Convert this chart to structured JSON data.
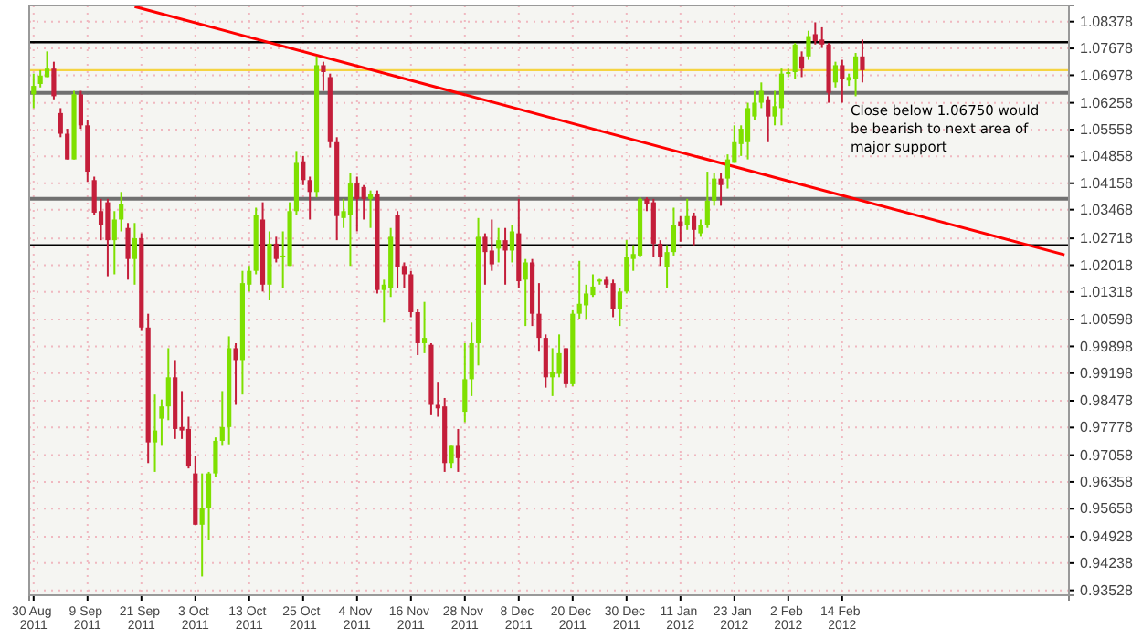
{
  "chart_data": {
    "type": "candlestick",
    "grid": true,
    "categories": [
      "30 Aug 2011",
      null,
      null,
      null,
      null,
      null,
      null,
      null,
      "9 Sep 2011",
      null,
      null,
      null,
      null,
      null,
      null,
      null,
      "21 Sep 2011",
      null,
      null,
      null,
      null,
      null,
      null,
      null,
      "3 Oct 2011",
      null,
      null,
      null,
      null,
      null,
      null,
      null,
      "13 Oct 2011",
      null,
      null,
      null,
      null,
      null,
      null,
      null,
      "25 Oct 2011",
      null,
      null,
      null,
      null,
      null,
      null,
      null,
      "4 Nov 2011",
      null,
      null,
      null,
      null,
      null,
      null,
      null,
      "16 Nov 2011",
      null,
      null,
      null,
      null,
      null,
      null,
      null,
      "28 Nov 2011",
      null,
      null,
      null,
      null,
      null,
      null,
      null,
      "8 Dec 2011",
      null,
      null,
      null,
      null,
      null,
      null,
      null,
      "20 Dec 2011",
      null,
      null,
      null,
      null,
      null,
      null,
      null,
      "30 Dec 2011",
      null,
      null,
      null,
      null,
      null,
      null,
      null,
      "11 Jan 2012",
      null,
      null,
      null,
      null,
      null,
      null,
      null,
      "23 Jan 2012",
      null,
      null,
      null,
      null,
      null,
      null,
      null,
      "2 Feb 2012",
      null,
      null,
      null,
      null,
      null,
      null,
      null,
      "14 Feb 2012",
      null,
      null,
      null,
      null,
      null,
      null,
      null,
      null,
      null,
      null,
      null,
      null,
      null,
      null,
      null,
      null,
      null,
      null,
      null,
      null,
      null,
      null,
      null,
      null,
      null,
      null,
      null,
      null,
      null,
      null,
      null,
      null,
      null
    ],
    "ohlc": [
      [
        1.0648,
        1.0702,
        1.0612,
        1.067
      ],
      [
        1.0675,
        1.0711,
        1.0666,
        1.0697
      ],
      [
        1.0693,
        1.076,
        1.0693,
        1.0715
      ],
      [
        1.0715,
        1.0733,
        1.0635,
        1.0643
      ],
      [
        1.0599,
        1.0612,
        1.0536,
        1.0545
      ],
      [
        1.0545,
        1.0558,
        1.0478,
        1.0478
      ],
      [
        1.0478,
        1.0657,
        1.0478,
        1.0648
      ],
      [
        1.0648,
        1.0657,
        1.0558,
        1.0567
      ],
      [
        1.0567,
        1.0581,
        1.042,
        1.0446
      ],
      [
        1.0424,
        1.0433,
        1.0334,
        1.0339
      ],
      [
        1.0343,
        1.0375,
        1.0267,
        1.0307
      ],
      [
        1.0366,
        1.0375,
        1.0173,
        1.0267
      ],
      [
        1.0267,
        1.0343,
        1.0178,
        1.0321
      ],
      [
        1.0321,
        1.0393,
        1.029,
        1.0361
      ],
      [
        1.0299,
        1.0312,
        1.0164,
        1.0218
      ],
      [
        1.0218,
        1.0312,
        1.0151,
        1.0272
      ],
      [
        1.0272,
        1.0285,
        1.003,
        1.0039
      ],
      [
        1.0039,
        1.0075,
        0.9685,
        0.9739
      ],
      [
        0.9739,
        0.9864,
        0.9662,
        0.977
      ],
      [
        0.9801,
        0.9851,
        0.973,
        0.9833
      ],
      [
        0.9833,
        0.9985,
        0.9797,
        0.9909
      ],
      [
        0.9909,
        0.9954,
        0.9748,
        0.9774
      ],
      [
        0.9779,
        0.9873,
        0.9748,
        0.977
      ],
      [
        0.9774,
        0.9806,
        0.9671,
        0.9676
      ],
      [
        0.9658,
        0.9703,
        0.9524,
        0.9524
      ],
      [
        0.9524,
        0.9658,
        0.9389,
        0.9568
      ],
      [
        0.9568,
        0.9662,
        0.9483,
        0.9658
      ],
      [
        0.9658,
        0.9752,
        0.9649,
        0.9743
      ],
      [
        0.9743,
        0.9873,
        0.973,
        0.9779
      ],
      [
        0.9779,
        1.0016,
        0.9734,
        0.9985
      ],
      [
        0.9985,
        0.9998,
        0.9837,
        0.9954
      ],
      [
        0.9954,
        1.0187,
        0.9864,
        1.0155
      ],
      [
        1.0151,
        1.02,
        1.0133,
        1.0187
      ],
      [
        1.0187,
        1.0352,
        1.0178,
        1.0334
      ],
      [
        1.0321,
        1.0366,
        1.0133,
        1.0151
      ],
      [
        1.0151,
        1.029,
        1.011,
        1.0258
      ],
      [
        1.0258,
        1.0276,
        1.0209,
        1.0218
      ],
      [
        1.0222,
        1.029,
        1.0142,
        1.0227
      ],
      [
        1.02,
        1.0366,
        1.02,
        1.0343
      ],
      [
        1.0343,
        1.05,
        1.0334,
        1.0469
      ],
      [
        1.0473,
        1.0487,
        1.0411,
        1.0424
      ],
      [
        1.0424,
        1.0433,
        1.0321,
        1.0393
      ],
      [
        1.0393,
        1.0747,
        1.0379,
        1.0724
      ],
      [
        1.0724,
        1.0733,
        1.0657,
        1.0706
      ],
      [
        1.0693,
        1.0702,
        1.0509,
        1.0523
      ],
      [
        1.0523,
        1.0536,
        1.0267,
        1.033
      ],
      [
        1.0325,
        1.0375,
        1.0299,
        1.0343
      ],
      [
        1.0334,
        1.0442,
        1.02,
        1.0415
      ],
      [
        1.0415,
        1.0433,
        1.029,
        1.0375
      ],
      [
        1.0406,
        1.0411,
        1.0321,
        1.0375
      ],
      [
        1.0375,
        1.0397,
        1.0299,
        1.0388
      ],
      [
        1.0388,
        1.0397,
        1.0128,
        1.0137
      ],
      [
        1.0137,
        1.0164,
        1.0052,
        1.0151
      ],
      [
        1.0142,
        1.0299,
        1.0119,
        1.0276
      ],
      [
        1.0334,
        1.0343,
        1.0142,
        1.0196
      ],
      [
        1.02,
        1.0209,
        1.0142,
        1.0178
      ],
      [
        1.0178,
        1.0187,
        1.0066,
        1.0079
      ],
      [
        1.0079,
        1.0088,
        0.9967,
        0.9998
      ],
      [
        0.9998,
        1.0106,
        0.9972,
        1.0012
      ],
      [
        0.9994,
        0.9998,
        0.981,
        0.9837
      ],
      [
        0.9837,
        0.9895,
        0.9806,
        0.9828
      ],
      [
        0.9833,
        0.9855,
        0.9662,
        0.9685
      ],
      [
        0.9685,
        0.973,
        0.9671,
        0.973
      ],
      [
        0.973,
        0.9774,
        0.9662,
        0.9698
      ],
      [
        0.9819,
        0.9998,
        0.9792,
        0.9904
      ],
      [
        0.9904,
        1.0052,
        0.986,
        0.9998
      ],
      [
        0.9998,
        1.0325,
        0.994,
        1.0276
      ],
      [
        1.0276,
        1.0285,
        1.0151,
        1.0236
      ],
      [
        1.024,
        1.0321,
        1.0187,
        1.0204
      ],
      [
        1.0245,
        1.0299,
        1.0209,
        1.0267
      ],
      [
        1.0267,
        1.0299,
        1.0151,
        1.024
      ],
      [
        1.024,
        1.0307,
        1.0209,
        1.029
      ],
      [
        1.0285,
        1.0375,
        1.0142,
        1.016
      ],
      [
        1.0164,
        1.0218,
        1.0043,
        1.0209
      ],
      [
        1.0209,
        1.0218,
        1.0043,
        1.0075
      ],
      [
        1.0075,
        1.0155,
        0.9976,
        1.0012
      ],
      [
        1.0012,
        1.0021,
        0.9882,
        0.9909
      ],
      [
        0.9909,
        0.9985,
        0.986,
        0.9922
      ],
      [
        0.9918,
        1.0021,
        0.9909,
        0.9972
      ],
      [
        0.9985,
        0.9985,
        0.9882,
        0.9891
      ],
      [
        0.9891,
        1.0084,
        0.9886,
        1.0075
      ],
      [
        1.0075,
        1.0213,
        1.0061,
        1.0101
      ],
      [
        1.0097,
        1.0151,
        1.0061,
        1.0128
      ],
      [
        1.0124,
        1.0178,
        1.0119,
        1.0146
      ],
      [
        1.016,
        1.0166,
        1.0151,
        1.0164
      ],
      [
        1.0164,
        1.0173,
        1.0142,
        1.0151
      ],
      [
        1.0155,
        1.0164,
        1.0066,
        1.0088
      ],
      [
        1.0088,
        1.0142,
        1.0043,
        1.0133
      ],
      [
        1.0133,
        1.0267,
        1.0128,
        1.0222
      ],
      [
        1.0218,
        1.0254,
        1.0187,
        1.0231
      ],
      [
        1.0227,
        1.0379,
        1.0222,
        1.0375
      ],
      [
        1.0375,
        1.0379,
        1.0343,
        1.0361
      ],
      [
        1.0366,
        1.0375,
        1.0222,
        1.0258
      ],
      [
        1.0258,
        1.0267,
        1.02,
        1.0222
      ],
      [
        1.0196,
        1.0254,
        1.0142,
        1.0236
      ],
      [
        1.0236,
        1.0352,
        1.0227,
        1.0307
      ],
      [
        1.0316,
        1.033,
        1.0263,
        1.0303
      ],
      [
        1.0307,
        1.0375,
        1.0294,
        1.033
      ],
      [
        1.033,
        1.0339,
        1.0254,
        1.0294
      ],
      [
        1.0285,
        1.0321,
        1.0276,
        1.0307
      ],
      [
        1.0307,
        1.0446,
        1.0299,
        1.037
      ],
      [
        1.037,
        1.0442,
        1.0357,
        1.0428
      ],
      [
        1.0428,
        1.0442,
        1.0357,
        1.0411
      ],
      [
        1.0428,
        1.0491,
        1.0402,
        1.0478
      ],
      [
        1.0469,
        1.0567,
        1.0469,
        1.0523
      ],
      [
        1.0518,
        1.0567,
        1.0487,
        1.0558
      ],
      [
        1.0523,
        1.0626,
        1.0478,
        1.0612
      ],
      [
        1.059,
        1.0657,
        1.0581,
        1.0626
      ],
      [
        1.0626,
        1.0679,
        1.0612,
        1.0657
      ],
      [
        1.0635,
        1.0643,
        1.0523,
        1.059
      ],
      [
        1.059,
        1.0657,
        1.0567,
        1.0617
      ],
      [
        1.0612,
        1.0715,
        1.0567,
        1.0702
      ],
      [
        1.0702,
        1.0715,
        1.0693,
        1.0706
      ],
      [
        1.0706,
        1.0782,
        1.0688,
        1.0778
      ],
      [
        1.0747,
        1.076,
        1.0693,
        1.0715
      ],
      [
        1.0747,
        1.0814,
        1.0738,
        1.08
      ],
      [
        1.0805,
        1.0836,
        1.0778,
        1.0787
      ],
      [
        1.0791,
        1.0823,
        1.0769,
        1.0778
      ],
      [
        1.0778,
        1.0782,
        1.0626,
        1.0652
      ],
      [
        1.0679,
        1.0733,
        1.0666,
        1.0724
      ],
      [
        1.0724,
        1.0738,
        1.0626,
        1.0688
      ],
      [
        1.0684,
        1.0702,
        1.067,
        1.0693
      ],
      [
        1.0688,
        1.0756,
        1.0643,
        1.0747
      ],
      [
        1.0747,
        1.0791,
        1.0679,
        1.0711
      ],
      null,
      null,
      null,
      null,
      null,
      null,
      null,
      null,
      null,
      null,
      null,
      null,
      null,
      null,
      null,
      null,
      null,
      null,
      null,
      null,
      null,
      null,
      null,
      null,
      null,
      null,
      null,
      null,
      null,
      null
    ],
    "colors": [
      "#7ee000",
      "#7ee000",
      "#7ee000",
      "#c41e3a",
      "#c41e3a",
      "#c41e3a",
      "#7ee000",
      "#c41e3a",
      "#c41e3a",
      "#c41e3a",
      "#c41e3a",
      "#c41e3a",
      "#7ee000",
      "#7ee000",
      "#c41e3a",
      "#7ee000",
      "#c41e3a",
      "#c41e3a",
      "#7ee000",
      "#7ee000",
      "#7ee000",
      "#c41e3a",
      "#c41e3a",
      "#c41e3a",
      "#c41e3a",
      "#7ee000",
      "#7ee000",
      "#7ee000",
      "#7ee000",
      "#7ee000",
      "#c41e3a",
      "#7ee000",
      "#7ee000",
      "#7ee000",
      "#c41e3a",
      "#7ee000",
      "#c41e3a",
      "#7ee000",
      "#7ee000",
      "#7ee000",
      "#c41e3a",
      "#c41e3a",
      "#7ee000",
      "#c41e3a",
      "#c41e3a",
      "#c41e3a",
      "#7ee000",
      "#7ee000",
      "#c41e3a",
      "#c41e3a",
      "#7ee000",
      "#c41e3a",
      "#7ee000",
      "#7ee000",
      "#c41e3a",
      "#c41e3a",
      "#c41e3a",
      "#c41e3a",
      "#7ee000",
      "#c41e3a",
      "#c41e3a",
      "#c41e3a",
      "#7ee000",
      "#c41e3a",
      "#7ee000",
      "#7ee000",
      "#7ee000",
      "#c41e3a",
      "#c41e3a",
      "#7ee000",
      "#c41e3a",
      "#7ee000",
      "#c41e3a",
      "#7ee000",
      "#c41e3a",
      "#c41e3a",
      "#c41e3a",
      "#7ee000",
      "#7ee000",
      "#c41e3a",
      "#7ee000",
      "#7ee000",
      "#7ee000",
      "#7ee000",
      "#7ee000",
      "#c41e3a",
      "#c41e3a",
      "#7ee000",
      "#7ee000",
      "#7ee000",
      "#7ee000",
      "#c41e3a",
      "#c41e3a",
      "#c41e3a",
      "#7ee000",
      "#7ee000",
      "#c41e3a",
      "#7ee000",
      "#c41e3a",
      "#7ee000",
      "#7ee000",
      "#7ee000",
      "#c41e3a",
      "#7ee000",
      "#7ee000",
      "#7ee000",
      "#7ee000",
      "#7ee000",
      "#7ee000",
      "#c41e3a",
      "#7ee000",
      "#7ee000",
      "#7ee000",
      "#7ee000",
      "#c41e3a",
      "#7ee000",
      "#c41e3a",
      "#c41e3a",
      "#c41e3a",
      "#7ee000",
      "#c41e3a",
      "#7ee000",
      "#7ee000",
      "#c41e3a",
      null,
      null,
      null,
      null,
      null,
      null,
      null,
      null,
      null,
      null,
      null,
      null,
      null,
      null,
      null,
      null,
      null,
      null,
      null,
      null,
      null,
      null,
      null,
      null,
      null,
      null,
      null,
      null,
      null,
      null
    ],
    "series": [
      {
        "type": "line",
        "color": "#ff0000",
        "values": [
          null,
          null,
          null,
          null,
          null,
          null,
          null,
          null,
          null,
          null,
          null,
          null,
          null,
          null,
          null,
          1.0877,
          null,
          null,
          null,
          null,
          null,
          null,
          null,
          null,
          null,
          null,
          null,
          null,
          null,
          null,
          null,
          null,
          null,
          null,
          null,
          null,
          null,
          null,
          null,
          null,
          null,
          null,
          null,
          null,
          null,
          null,
          null,
          null,
          null,
          null,
          null,
          null,
          null,
          null,
          null,
          null,
          null,
          null,
          null,
          null,
          null,
          null,
          null,
          null,
          null,
          null,
          null,
          null,
          null,
          null,
          null,
          null,
          null,
          null,
          null,
          null,
          null,
          null,
          null,
          null,
          null,
          null,
          null,
          null,
          null,
          null,
          null,
          null,
          null,
          null,
          null,
          null,
          null,
          null,
          null,
          null,
          null,
          null,
          null,
          null,
          null,
          null,
          null,
          null,
          null,
          null,
          null,
          null,
          null,
          null,
          null,
          null,
          null,
          null,
          null,
          null,
          null,
          null,
          null,
          null,
          null,
          null,
          null,
          null,
          null,
          null,
          null,
          null,
          null,
          null,
          null,
          null,
          null,
          null,
          null,
          null,
          null,
          null,
          null,
          null,
          null,
          null,
          null,
          null,
          null,
          null,
          null,
          null,
          null,
          null,
          null,
          null,
          null,
          1.0229
        ]
      }
    ],
    "ref_lines": [
      {
        "axis": "y",
        "value": 1.0784,
        "color": "#000000"
      },
      {
        "axis": "y",
        "value": 1.0711,
        "color": "#f5d442"
      },
      {
        "axis": "y",
        "value": 1.0652,
        "color": "#707070"
      },
      {
        "axis": "y",
        "value": 1.0375,
        "color": "#707070"
      },
      {
        "axis": "y",
        "value": 1.0254,
        "color": "#000000"
      }
    ],
    "annotations": [
      "Close below 1.06750 would be bearish to next area of major support"
    ],
    "ylim": [
      0.934,
      1.088
    ],
    "yticks": [
      0.93528,
      0.94238,
      0.94928,
      0.95658,
      0.96358,
      0.97058,
      0.97778,
      0.98478,
      0.99198,
      0.99898,
      1.00598,
      1.01318,
      1.02018,
      1.02718,
      1.03468,
      1.04158,
      1.04858,
      1.05558,
      1.06258,
      1.06978,
      1.07678,
      1.08378
    ]
  }
}
